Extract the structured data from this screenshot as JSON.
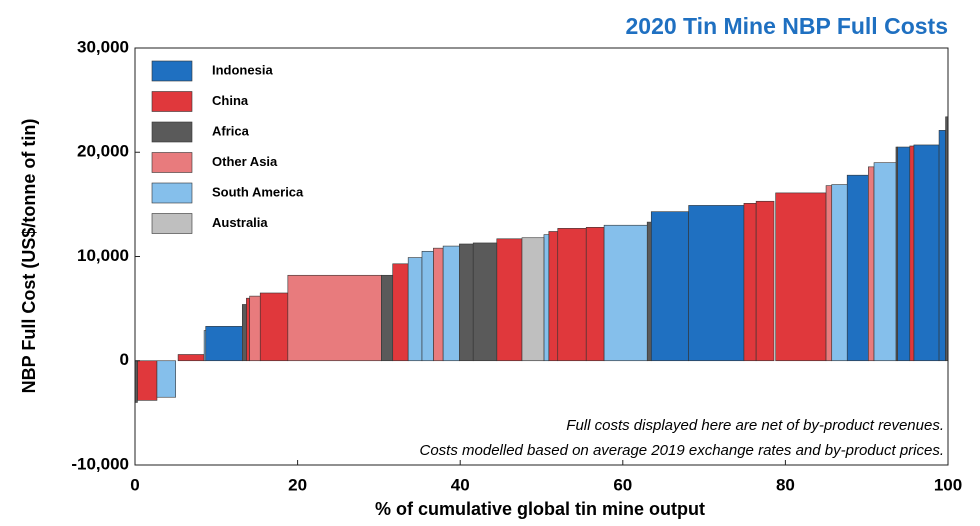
{
  "chart_data": {
    "type": "cost_curve",
    "title": "2020 Tin Mine NBP Full Costs",
    "x_label": "% of cumulative global tin mine output",
    "y_label": "NBP Full Cost (US$/tonne of tin)",
    "annotations": [
      "Full costs displayed here are net of by-product revenues.",
      "Costs modelled based on average 2019 exchange rates and by-product prices."
    ],
    "xlim": [
      0,
      100
    ],
    "xticks": [
      0,
      20,
      40,
      60,
      80,
      100
    ],
    "ylim": [
      -10000,
      30000
    ],
    "yticks": [
      {
        "value": -10000,
        "label": "-10,000"
      },
      0,
      {
        "value": 10000,
        "label": "10,000"
      },
      {
        "value": 20000,
        "label": "20,000"
      },
      {
        "value": 30000,
        "label": "30,000"
      }
    ],
    "legend": "top-left",
    "series": [
      {
        "name": "Indonesia",
        "color": "#1f70c1",
        "x_start": [
          8.7,
          63.5,
          68.1,
          87.6,
          93.8,
          95.8,
          98.9
        ],
        "x_end": [
          13.2,
          68.1,
          74.9,
          90.2,
          95.3,
          98.9,
          99.7
        ],
        "values": [
          3300,
          14300,
          14900,
          17800,
          20500,
          20700,
          22100
        ]
      },
      {
        "name": "China",
        "color": "#e0383c",
        "x_start": [
          0.3,
          5.3,
          13.7,
          15.4,
          31.7,
          44.5,
          50.9,
          52.0,
          55.5,
          74.9,
          76.4,
          78.8,
          95.3
        ],
        "x_end": [
          2.7,
          8.5,
          14.1,
          18.8,
          33.6,
          47.6,
          52.0,
          55.5,
          57.7,
          76.4,
          78.6,
          85.0,
          95.8
        ],
        "values": [
          -3800,
          600,
          6000,
          6500,
          9300,
          11700,
          12400,
          12700,
          12800,
          15100,
          15300,
          16100,
          20600
        ]
      },
      {
        "name": "Africa",
        "color": "#5a5a5a",
        "x_start": [
          0,
          13.2,
          30.3,
          39.9,
          41.6,
          63.0,
          93.6,
          99.7
        ],
        "x_end": [
          0.3,
          13.7,
          31.7,
          41.6,
          44.5,
          63.5,
          93.8,
          100
        ],
        "values": [
          -4000,
          5400,
          8200,
          11200,
          11300,
          13300,
          20500,
          23400
        ]
      },
      {
        "name": "Other Asia",
        "color": "#e87b7d",
        "x_start": [
          14.1,
          18.8,
          36.7,
          85.0,
          90.2
        ],
        "x_end": [
          15.4,
          30.3,
          37.9,
          85.7,
          90.9
        ],
        "values": [
          6200,
          8200,
          10800,
          16800,
          18600
        ]
      },
      {
        "name": "South America",
        "color": "#85bfeb",
        "x_start": [
          2.7,
          8.5,
          33.6,
          35.3,
          37.9,
          50.3,
          57.7,
          85.7,
          90.9
        ],
        "x_end": [
          5.0,
          8.7,
          35.3,
          36.7,
          39.9,
          50.9,
          63.0,
          87.6,
          93.6
        ],
        "values": [
          -3500,
          2900,
          9900,
          10500,
          11000,
          12100,
          13000,
          16900,
          19000
        ]
      },
      {
        "name": "Australia",
        "color": "#bfbfbf",
        "x_start": [
          47.6
        ],
        "x_end": [
          50.3
        ],
        "values": [
          11800
        ]
      }
    ]
  }
}
